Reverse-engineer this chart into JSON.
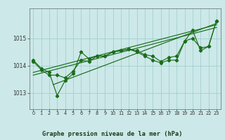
{
  "title": "Graphe pression niveau de la mer (hPa)",
  "bg_color": "#cce8e8",
  "grid_color": "#99cccc",
  "line_color": "#1a6e1a",
  "axis_color": "#666666",
  "xlim": [
    -0.5,
    23.5
  ],
  "ylim": [
    1012.4,
    1016.1
  ],
  "yticks": [
    1013,
    1014,
    1015
  ],
  "xticks": [
    0,
    1,
    2,
    3,
    4,
    5,
    6,
    7,
    8,
    9,
    10,
    11,
    12,
    13,
    14,
    15,
    16,
    17,
    18,
    19,
    20,
    21,
    22,
    23
  ],
  "series1": [
    1014.2,
    1013.9,
    1013.75,
    1012.9,
    1013.45,
    1013.7,
    1014.5,
    1014.25,
    1014.35,
    1014.35,
    1014.5,
    1014.55,
    1014.6,
    1014.55,
    1014.4,
    1014.35,
    1014.15,
    1014.3,
    1014.35,
    1014.9,
    1015.0,
    1014.65,
    1014.7,
    1015.65
  ],
  "series2": [
    1014.15,
    1013.85,
    1013.65,
    1013.65,
    1013.55,
    1013.8,
    1014.2,
    1014.15,
    1014.35,
    1014.35,
    1014.5,
    1014.55,
    1014.6,
    1014.5,
    1014.35,
    1014.2,
    1014.1,
    1014.2,
    1014.2,
    1014.9,
    1015.3,
    1014.55,
    1014.7,
    1015.65
  ],
  "trend1_x": [
    0,
    23
  ],
  "trend1_y": [
    1013.75,
    1015.5
  ],
  "trend2_x": [
    0,
    23
  ],
  "trend2_y": [
    1013.65,
    1015.4
  ],
  "trend3_x": [
    2.5,
    23
  ],
  "trend3_y": [
    1013.3,
    1015.55
  ]
}
